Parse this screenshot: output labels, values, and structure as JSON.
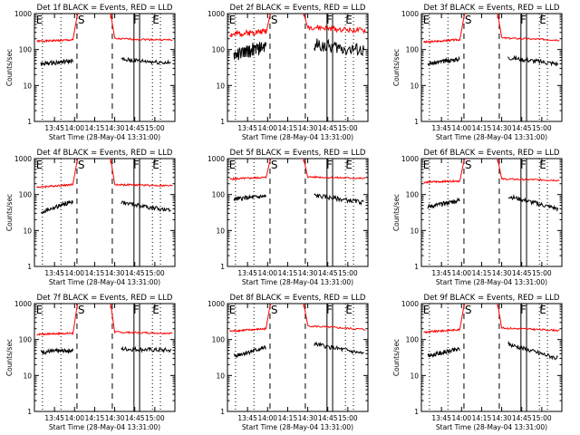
{
  "chart_data": [
    {
      "type": "line",
      "title": "Det 1f BLACK = Events, RED = LLD",
      "xlabel": "Start Time (28-May-04 13:31:00)",
      "ylabel": "Counts/sec",
      "yscale": "log",
      "ylim": [
        1,
        1000
      ],
      "xlim": [
        13.5,
        15.25
      ],
      "xticks": [
        "13:45",
        "14:00",
        "14:15",
        "14:30",
        "14:45",
        "15:00"
      ],
      "yticks": [
        "1",
        "10",
        "100",
        "1000"
      ],
      "markers": [
        "E",
        "S",
        "F",
        "E"
      ],
      "series": [
        {
          "color": "#ff0000",
          "segments": [
            {
              "x": [
                13.53,
                13.98
              ],
              "y": [
                170,
                185
              ]
            },
            {
              "x": [
                14.5,
                15.22
              ],
              "y": [
                200,
                185
              ]
            }
          ],
          "spike": {
            "x": 14.03,
            "y": 800
          },
          "spike_back": {
            "x": 14.45,
            "y": 750
          }
        },
        {
          "color": "#000000",
          "segments": [
            {
              "x": [
                13.58,
                13.98
              ],
              "y": [
                40,
                48
              ]
            },
            {
              "x": [
                14.58,
                15.2
              ],
              "y": [
                52,
                42
              ]
            }
          ]
        }
      ]
    },
    {
      "type": "line",
      "title": "Det 2f BLACK = Events, RED = LLD",
      "xlabel": "Start Time (28-May-04 13:31:00)",
      "ylabel": "",
      "yscale": "log",
      "ylim": [
        1,
        1000
      ],
      "xlim": [
        13.5,
        15.25
      ],
      "xticks": [
        "13:45",
        "14:00",
        "14:15",
        "14:30",
        "14:45",
        "15:00"
      ],
      "yticks": [
        "1",
        "10",
        "100",
        "1000"
      ],
      "markers": [
        "E",
        "S",
        "F",
        "E"
      ],
      "series": [
        {
          "color": "#ff0000",
          "segments": [
            {
              "x": [
                13.53,
                13.98
              ],
              "y": [
                260,
                330
              ]
            },
            {
              "x": [
                14.5,
                15.22
              ],
              "y": [
                420,
                330
              ]
            }
          ],
          "spike": {
            "x": 14.03,
            "y": 900
          },
          "spike_back": {
            "x": 14.45,
            "y": 850
          }
        },
        {
          "color": "#000000",
          "segments": [
            {
              "x": [
                13.58,
                13.98
              ],
              "y": [
                70,
                120
              ]
            },
            {
              "x": [
                14.58,
                15.2
              ],
              "y": [
                140,
                90
              ]
            }
          ]
        }
      ]
    },
    {
      "type": "line",
      "title": "Det 3f BLACK = Events, RED = LLD",
      "xlabel": "Start Time (28-May-04 13:31:00)",
      "ylabel": "Counts/sec",
      "yscale": "log",
      "ylim": [
        1,
        1000
      ],
      "xlim": [
        13.5,
        15.25
      ],
      "xticks": [
        "13:45",
        "14:00",
        "14:15",
        "14:30",
        "14:45",
        "15:00"
      ],
      "yticks": [
        "1",
        "10",
        "100",
        "1000"
      ],
      "markers": [
        "E",
        "S",
        "F",
        "E"
      ],
      "series": [
        {
          "color": "#ff0000",
          "segments": [
            {
              "x": [
                13.53,
                13.98
              ],
              "y": [
                160,
                190
              ]
            },
            {
              "x": [
                14.5,
                15.22
              ],
              "y": [
                210,
                185
              ]
            }
          ],
          "spike": {
            "x": 14.03,
            "y": 800
          },
          "spike_back": {
            "x": 14.45,
            "y": 750
          }
        },
        {
          "color": "#000000",
          "segments": [
            {
              "x": [
                13.58,
                13.98
              ],
              "y": [
                40,
                55
              ]
            },
            {
              "x": [
                14.58,
                15.2
              ],
              "y": [
                60,
                40
              ]
            }
          ]
        }
      ]
    },
    {
      "type": "line",
      "title": "Det 4f BLACK = Events, RED = LLD",
      "xlabel": "Start Time (28-May-04 13:31:00)",
      "ylabel": "Counts/sec",
      "yscale": "log",
      "ylim": [
        1,
        1000
      ],
      "xlim": [
        13.5,
        15.25
      ],
      "xticks": [
        "13:45",
        "14:00",
        "14:15",
        "14:30",
        "14:45",
        "15:00"
      ],
      "yticks": [
        "1",
        "10",
        "100",
        "1000"
      ],
      "markers": [
        "E",
        "S",
        "F",
        "E"
      ],
      "series": [
        {
          "color": "#ff0000",
          "segments": [
            {
              "x": [
                13.53,
                13.98
              ],
              "y": [
                160,
                190
              ]
            },
            {
              "x": [
                14.5,
                15.22
              ],
              "y": [
                190,
                175
              ]
            }
          ],
          "spike": {
            "x": 14.03,
            "y": 800
          },
          "spike_back": {
            "x": 14.45,
            "y": 750
          }
        },
        {
          "color": "#000000",
          "segments": [
            {
              "x": [
                13.58,
                13.98
              ],
              "y": [
                32,
                65
              ]
            },
            {
              "x": [
                14.58,
                15.2
              ],
              "y": [
                60,
                35
              ]
            }
          ]
        }
      ]
    },
    {
      "type": "line",
      "title": "Det 5f BLACK = Events, RED = LLD",
      "xlabel": "Start Time (28-May-04 13:31:00)",
      "ylabel": "",
      "yscale": "log",
      "ylim": [
        1,
        1000
      ],
      "xlim": [
        13.5,
        15.25
      ],
      "xticks": [
        "13:45",
        "14:00",
        "14:15",
        "14:30",
        "14:45",
        "15:00"
      ],
      "yticks": [
        "1",
        "10",
        "100",
        "1000"
      ],
      "markers": [
        "E",
        "S",
        "F",
        "E"
      ],
      "series": [
        {
          "color": "#ff0000",
          "segments": [
            {
              "x": [
                13.53,
                13.98
              ],
              "y": [
                270,
                300
              ]
            },
            {
              "x": [
                14.5,
                15.22
              ],
              "y": [
                310,
                280
              ]
            }
          ],
          "spike": {
            "x": 14.03,
            "y": 850
          },
          "spike_back": {
            "x": 14.45,
            "y": 800
          }
        },
        {
          "color": "#000000",
          "segments": [
            {
              "x": [
                13.58,
                13.98
              ],
              "y": [
                75,
                90
              ]
            },
            {
              "x": [
                14.58,
                15.2
              ],
              "y": [
                95,
                60
              ]
            }
          ]
        }
      ]
    },
    {
      "type": "line",
      "title": "Det 6f BLACK = Events, RED = LLD",
      "xlabel": "Start Time (28-May-04 13:31:00)",
      "ylabel": "Counts/sec",
      "yscale": "log",
      "ylim": [
        1,
        1000
      ],
      "xlim": [
        13.5,
        15.25
      ],
      "xticks": [
        "13:45",
        "14:00",
        "14:15",
        "14:30",
        "14:45",
        "15:00"
      ],
      "yticks": [
        "1",
        "10",
        "100",
        "1000"
      ],
      "markers": [
        "E",
        "S",
        "F",
        "E"
      ],
      "series": [
        {
          "color": "#ff0000",
          "segments": [
            {
              "x": [
                13.53,
                13.98
              ],
              "y": [
                220,
                240
              ]
            },
            {
              "x": [
                14.5,
                15.22
              ],
              "y": [
                270,
                250
              ]
            }
          ],
          "spike": {
            "x": 14.03,
            "y": 850
          },
          "spike_back": {
            "x": 14.45,
            "y": 800
          }
        },
        {
          "color": "#000000",
          "segments": [
            {
              "x": [
                13.58,
                13.98
              ],
              "y": [
                45,
                70
              ]
            },
            {
              "x": [
                14.58,
                15.2
              ],
              "y": [
                90,
                40
              ]
            }
          ]
        }
      ]
    },
    {
      "type": "line",
      "title": "Det 7f BLACK = Events, RED = LLD",
      "xlabel": "Start Time (28-May-04 13:31:00)",
      "ylabel": "Counts/sec",
      "yscale": "log",
      "ylim": [
        1,
        1000
      ],
      "xlim": [
        13.5,
        15.25
      ],
      "xticks": [
        "13:45",
        "14:00",
        "14:15",
        "14:30",
        "14:45",
        "15:00"
      ],
      "yticks": [
        "1",
        "10",
        "100",
        "1000"
      ],
      "markers": [
        "E",
        "S",
        "F",
        "E"
      ],
      "series": [
        {
          "color": "#ff0000",
          "segments": [
            {
              "x": [
                13.53,
                13.98
              ],
              "y": [
                140,
                150
              ]
            },
            {
              "x": [
                14.5,
                15.22
              ],
              "y": [
                160,
                150
              ]
            }
          ],
          "spike": {
            "x": 14.03,
            "y": 800
          },
          "spike_back": {
            "x": 14.45,
            "y": 750
          }
        },
        {
          "color": "#000000",
          "segments": [
            {
              "x": [
                13.58,
                13.98
              ],
              "y": [
                45,
                50
              ]
            },
            {
              "x": [
                14.58,
                15.2
              ],
              "y": [
                55,
                50
              ]
            }
          ]
        }
      ]
    },
    {
      "type": "line",
      "title": "Det 8f BLACK = Events, RED = LLD",
      "xlabel": "Start Time (28-May-04 13:31:00)",
      "ylabel": "",
      "yscale": "log",
      "ylim": [
        1,
        1000
      ],
      "xlim": [
        13.5,
        15.25
      ],
      "xticks": [
        "13:45",
        "14:00",
        "14:15",
        "14:30",
        "14:45",
        "15:00"
      ],
      "yticks": [
        "1",
        "10",
        "100",
        "1000"
      ],
      "markers": [
        "E",
        "S",
        "F",
        "E"
      ],
      "series": [
        {
          "color": "#ff0000",
          "segments": [
            {
              "x": [
                13.53,
                13.98
              ],
              "y": [
                170,
                200
              ]
            },
            {
              "x": [
                14.5,
                15.22
              ],
              "y": [
                240,
                190
              ]
            }
          ],
          "spike": {
            "x": 14.03,
            "y": 850
          },
          "spike_back": {
            "x": 14.45,
            "y": 800
          }
        },
        {
          "color": "#000000",
          "segments": [
            {
              "x": [
                13.58,
                13.98
              ],
              "y": [
                35,
                60
              ]
            },
            {
              "x": [
                14.58,
                15.2
              ],
              "y": [
                75,
                40
              ]
            }
          ]
        }
      ]
    },
    {
      "type": "line",
      "title": "Det 9f BLACK = Events, RED = LLD",
      "xlabel": "Start Time (28-May-04 13:31:00)",
      "ylabel": "Counts/sec",
      "yscale": "log",
      "ylim": [
        1,
        1000
      ],
      "xlim": [
        13.5,
        15.25
      ],
      "xticks": [
        "13:45",
        "14:00",
        "14:15",
        "14:30",
        "14:45",
        "15:00"
      ],
      "yticks": [
        "1",
        "10",
        "100",
        "1000"
      ],
      "markers": [
        "E",
        "S",
        "F",
        "E"
      ],
      "series": [
        {
          "color": "#ff0000",
          "segments": [
            {
              "x": [
                13.53,
                13.98
              ],
              "y": [
                160,
                190
              ]
            },
            {
              "x": [
                14.5,
                15.22
              ],
              "y": [
                210,
                180
              ]
            }
          ],
          "spike": {
            "x": 14.03,
            "y": 850
          },
          "spike_back": {
            "x": 14.45,
            "y": 800
          }
        },
        {
          "color": "#000000",
          "segments": [
            {
              "x": [
                13.58,
                13.98
              ],
              "y": [
                35,
                55
              ]
            },
            {
              "x": [
                14.58,
                15.2
              ],
              "y": [
                75,
                30
              ]
            }
          ]
        }
      ]
    }
  ]
}
